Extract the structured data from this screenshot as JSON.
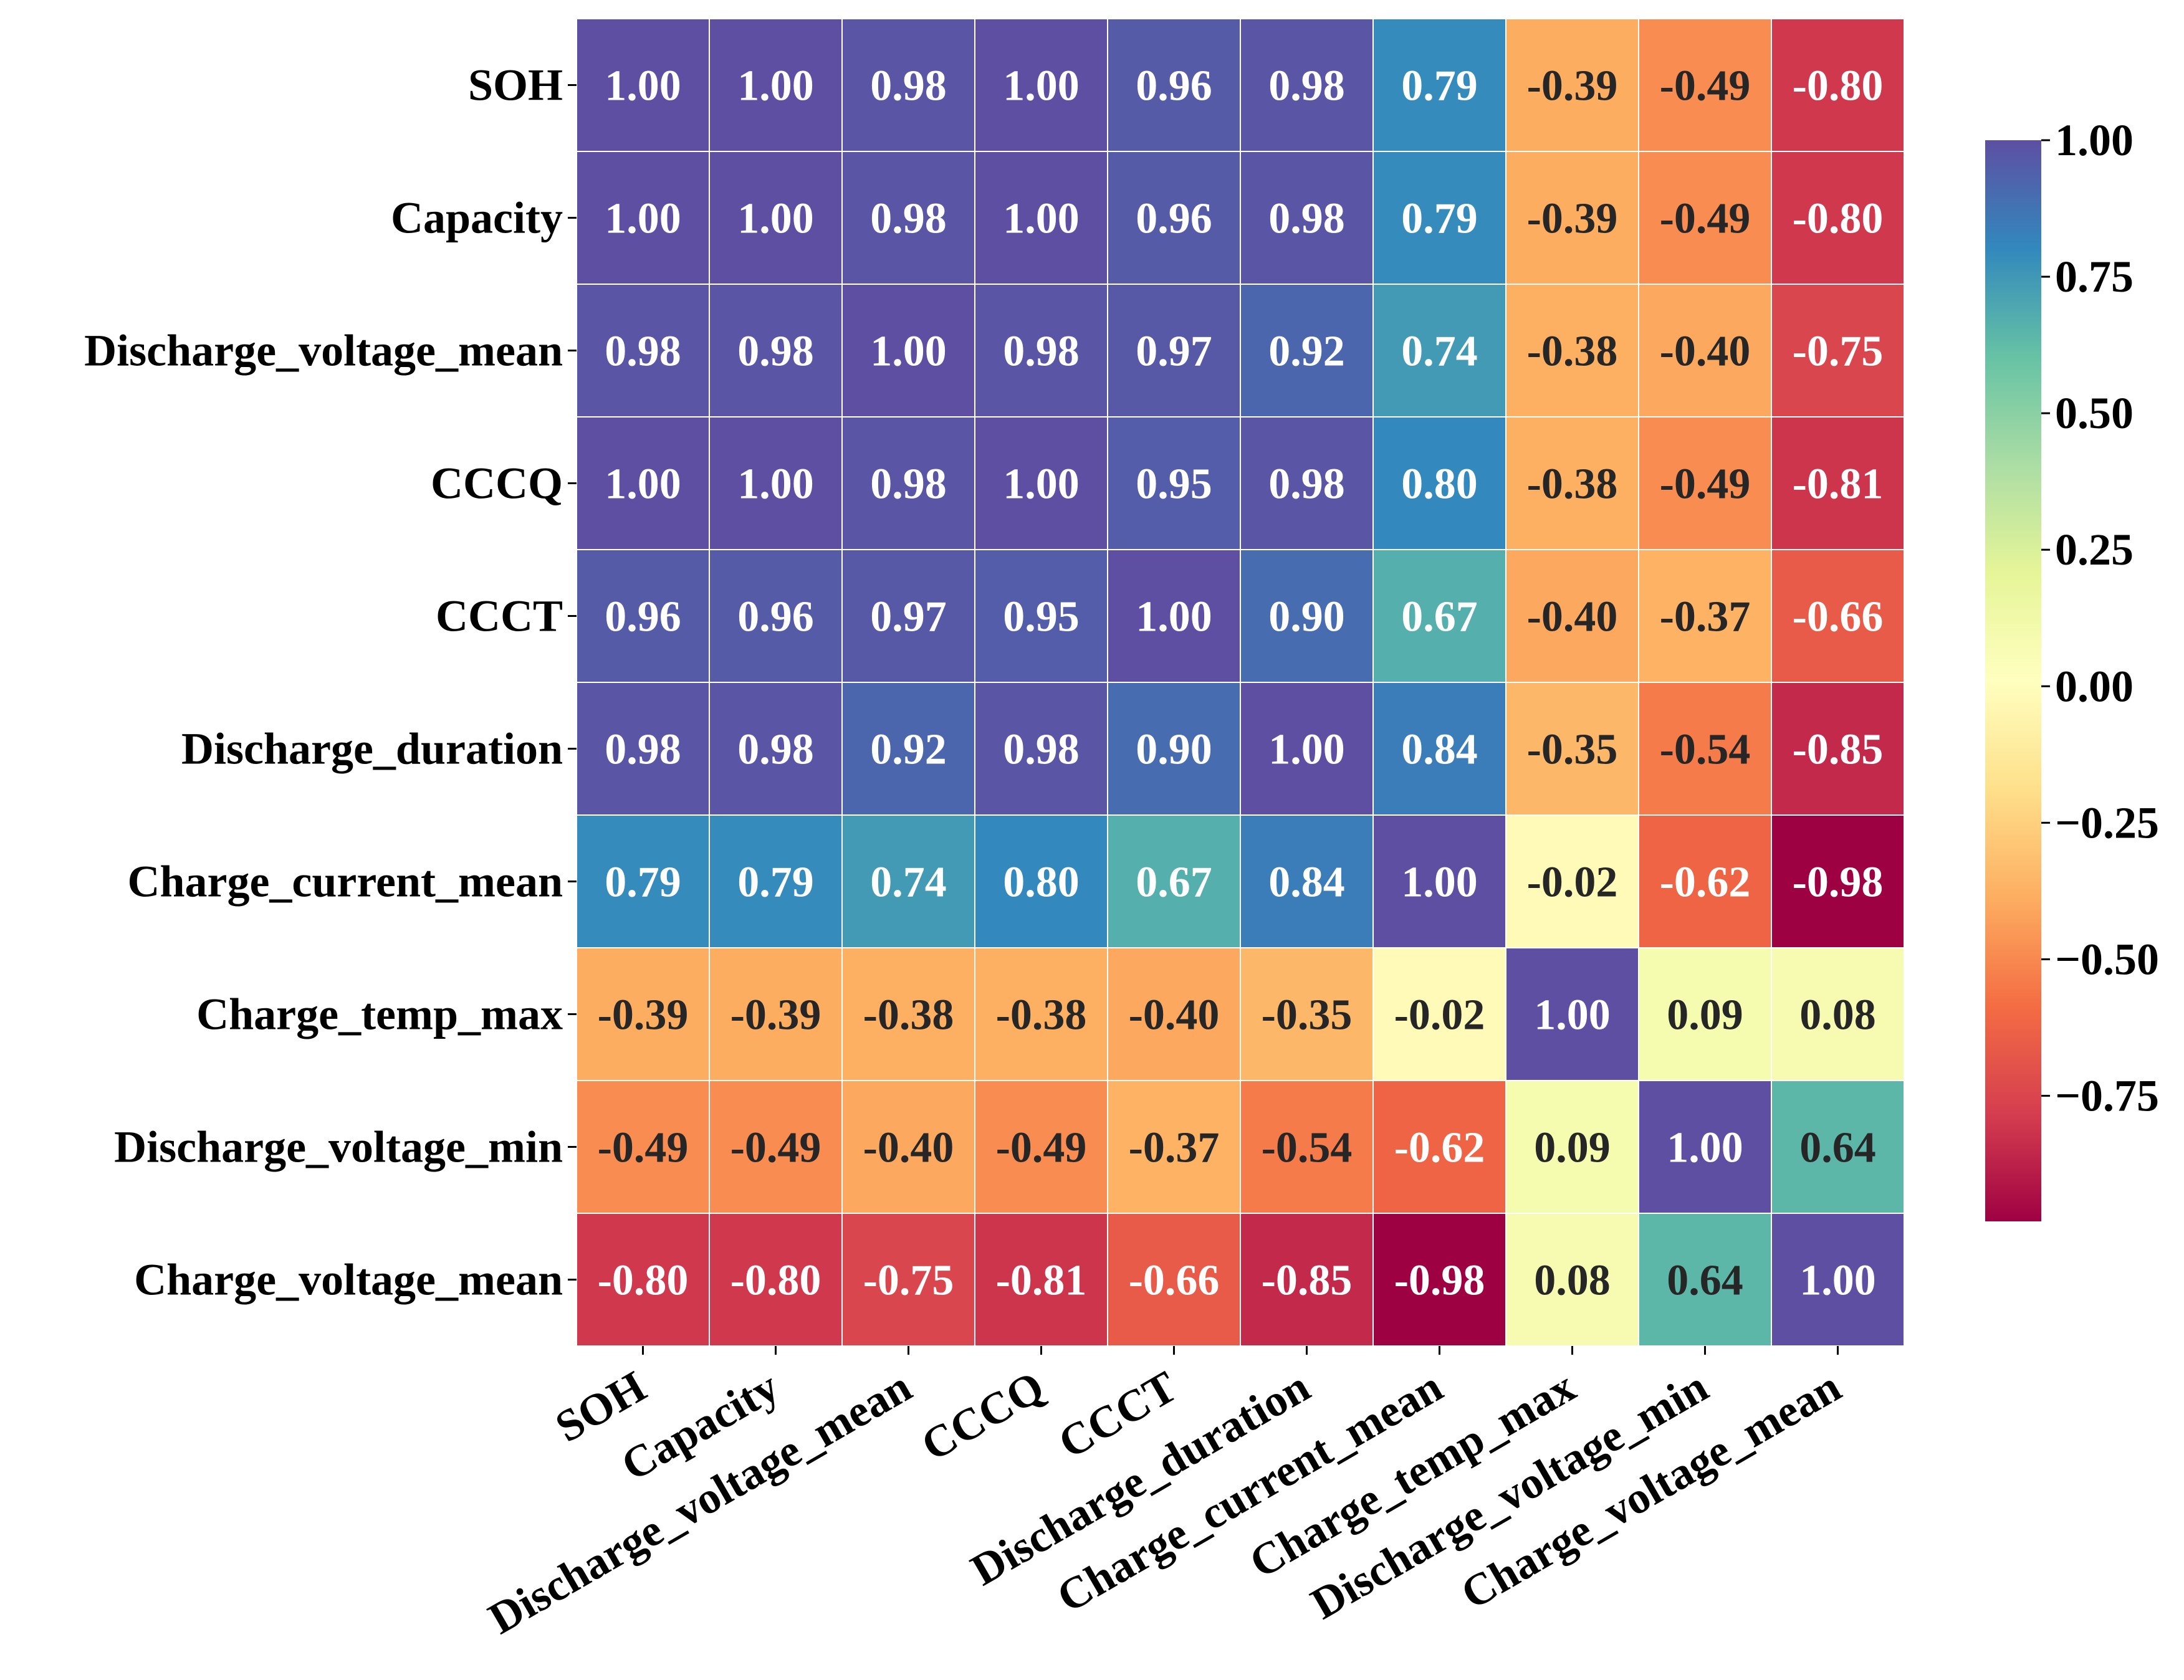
{
  "chart_data": {
    "type": "heatmap",
    "title": "",
    "xlabel": "",
    "ylabel": "",
    "labels": [
      "SOH",
      "Capacity",
      "Discharge_voltage_mean",
      "CCCQ",
      "CCCT",
      "Discharge_duration",
      "Charge_current_mean",
      "Charge_temp_max",
      "Discharge_voltage_min",
      "Charge_voltage_mean"
    ],
    "matrix": [
      [
        1.0,
        1.0,
        0.98,
        1.0,
        0.96,
        0.98,
        0.79,
        -0.39,
        -0.49,
        -0.8
      ],
      [
        1.0,
        1.0,
        0.98,
        1.0,
        0.96,
        0.98,
        0.79,
        -0.39,
        -0.49,
        -0.8
      ],
      [
        0.98,
        0.98,
        1.0,
        0.98,
        0.97,
        0.92,
        0.74,
        -0.38,
        -0.4,
        -0.75
      ],
      [
        1.0,
        1.0,
        0.98,
        1.0,
        0.95,
        0.98,
        0.8,
        -0.38,
        -0.49,
        -0.81
      ],
      [
        0.96,
        0.96,
        0.97,
        0.95,
        1.0,
        0.9,
        0.67,
        -0.4,
        -0.37,
        -0.66
      ],
      [
        0.98,
        0.98,
        0.92,
        0.98,
        0.9,
        1.0,
        0.84,
        -0.35,
        -0.54,
        -0.85
      ],
      [
        0.79,
        0.79,
        0.74,
        0.8,
        0.67,
        0.84,
        1.0,
        -0.02,
        -0.62,
        -0.98
      ],
      [
        -0.39,
        -0.39,
        -0.38,
        -0.38,
        -0.4,
        -0.35,
        -0.02,
        1.0,
        0.09,
        0.08
      ],
      [
        -0.49,
        -0.49,
        -0.4,
        -0.49,
        -0.37,
        -0.54,
        -0.62,
        0.09,
        1.0,
        0.64
      ],
      [
        -0.8,
        -0.8,
        -0.75,
        -0.81,
        -0.66,
        -0.85,
        -0.98,
        0.08,
        0.64,
        1.0
      ]
    ],
    "value_format": "2 decimals",
    "colormap": "Spectral",
    "colormap_stops": [
      "#9e0142",
      "#d53e4f",
      "#f46d43",
      "#fdae61",
      "#fee08b",
      "#ffffbf",
      "#e6f598",
      "#abdda4",
      "#66c2a5",
      "#3288bd",
      "#5e4fa2"
    ],
    "color_range": [
      -0.98,
      1.0
    ],
    "cell_border_color": "#ffffff",
    "colorbar": {
      "position": "right",
      "ticks": [
        1.0,
        0.75,
        0.5,
        0.25,
        0.0,
        -0.25,
        -0.5,
        -0.75
      ],
      "tick_labels": [
        "1.00",
        "0.75",
        "0.50",
        "0.25",
        "0.00",
        "−0.25",
        "−0.50",
        "−0.75"
      ]
    },
    "x_tick_rotation": "30 degrees, right-aligned",
    "grid": false,
    "legend": "none"
  }
}
